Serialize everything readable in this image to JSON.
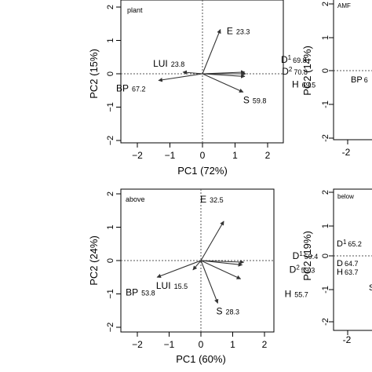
{
  "chart_data": [
    {
      "type": "biplot",
      "panel_label": "plant",
      "xlabel": "PC1 (72%)",
      "ylabel": "PC2 (15%)",
      "xlim": [
        -2,
        2
      ],
      "ylim": [
        -2,
        2
      ],
      "x_ticks": [
        "-2",
        "-1",
        "0",
        "1",
        "2"
      ],
      "y_ticks": [
        "-2",
        "-1",
        "0",
        "1",
        "2"
      ],
      "vectors": [
        {
          "name": "E",
          "value": "23.3",
          "x": 0.55,
          "y": 1.33
        },
        {
          "name": "D",
          "sub": "1",
          "value": "69.8",
          "x": 1.3,
          "y": 0.05
        },
        {
          "name": "D",
          "sub": "2",
          "value": "70.8",
          "x": 1.33,
          "y": 0.0
        },
        {
          "name": "H",
          "value": "69.5",
          "x": 1.3,
          "y": -0.08
        },
        {
          "name": "S",
          "value": "59.8",
          "x": 1.25,
          "y": -0.55
        },
        {
          "name": "LUI",
          "value": "23.8",
          "x": -0.6,
          "y": 0.05
        },
        {
          "name": "BP",
          "value": "67.2",
          "x": -1.35,
          "y": -0.2
        }
      ]
    },
    {
      "type": "biplot",
      "panel_label": "AMF",
      "xlabel": "",
      "ylabel": "PC2 (14%)",
      "xlim": [
        -2,
        2
      ],
      "ylim": [
        -2,
        2
      ],
      "x_ticks": [
        "-2"
      ],
      "y_ticks": [
        "-2",
        "-1",
        "0",
        "1",
        "2"
      ],
      "vectors": [
        {
          "name": "BP",
          "value": "6",
          "x": 0,
          "y": 0
        }
      ]
    },
    {
      "type": "biplot",
      "panel_label": "above",
      "xlabel": "PC1 (60%)",
      "ylabel": "PC2 (24%)",
      "xlim": [
        -2,
        2
      ],
      "ylim": [
        -2,
        2
      ],
      "x_ticks": [
        "-2",
        "-1",
        "0",
        "1",
        "2"
      ],
      "y_ticks": [
        "-2",
        "-1",
        "0",
        "1",
        "2"
      ],
      "vectors": [
        {
          "name": "E",
          "value": "32.5",
          "x": 0.72,
          "y": 1.18
        },
        {
          "name": "D",
          "sub": "1",
          "value": "59.4",
          "x": 1.35,
          "y": -0.05
        },
        {
          "name": "D",
          "sub": "2",
          "value": "59.3",
          "x": 1.3,
          "y": -0.13
        },
        {
          "name": "H",
          "value": "55.7",
          "x": 1.25,
          "y": -0.55
        },
        {
          "name": "S",
          "value": "28.3",
          "x": 0.53,
          "y": -1.28
        },
        {
          "name": "LUI",
          "value": "15.5",
          "x": -0.25,
          "y": -0.28
        },
        {
          "name": "BP",
          "value": "53.8",
          "x": -1.38,
          "y": -0.5
        }
      ]
    },
    {
      "type": "biplot",
      "panel_label": "below",
      "xlabel": "",
      "ylabel": "PC2 (19%)",
      "xlim": [
        -2,
        2
      ],
      "ylim": [
        -2,
        2
      ],
      "x_ticks": [
        "-2"
      ],
      "y_ticks": [
        "-2",
        "-1",
        "0",
        "1",
        "2"
      ],
      "vectors": [
        {
          "name": "D",
          "sub": "1",
          "value": "65.2",
          "x": 0,
          "y": 0
        },
        {
          "name": "D",
          "sub": "2",
          "value": "64.7",
          "x": 0,
          "y": 0
        },
        {
          "name": "H",
          "value": "63.7",
          "x": 0,
          "y": 0
        },
        {
          "name": "S",
          "value": "",
          "x": 0,
          "y": 0
        }
      ]
    }
  ]
}
